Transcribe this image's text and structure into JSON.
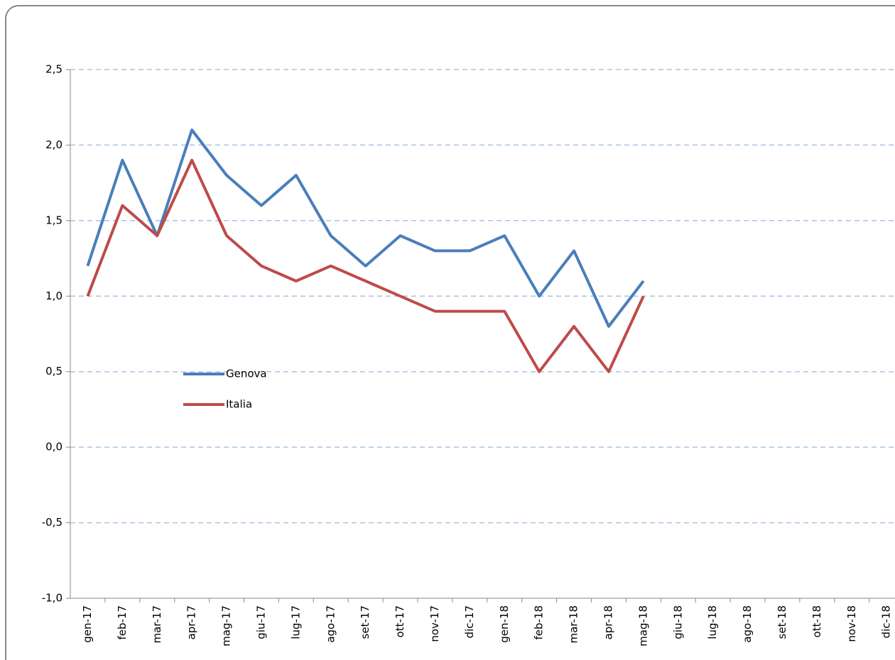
{
  "chart_data": {
    "type": "line",
    "categories": [
      "gen-17",
      "feb-17",
      "mar-17",
      "apr-17",
      "mag-17",
      "giu-17",
      "lug-17",
      "ago-17",
      "set-17",
      "ott-17",
      "nov-17",
      "dic-17",
      "gen-18",
      "feb-18",
      "mar-18",
      "apr-18",
      "mag-18",
      "giu-18",
      "lug-18",
      "ago-18",
      "set-18",
      "ott-18",
      "nov-18",
      "dic-18"
    ],
    "series": [
      {
        "name": "Genova",
        "color": "#4a7ebb",
        "values": [
          1.2,
          1.9,
          1.4,
          2.1,
          1.8,
          1.6,
          1.8,
          1.4,
          1.2,
          1.4,
          1.3,
          1.3,
          1.4,
          1.0,
          1.3,
          0.8,
          1.1,
          null,
          null,
          null,
          null,
          null,
          null,
          null
        ]
      },
      {
        "name": "Italia",
        "color": "#be4b48",
        "values": [
          1.0,
          1.6,
          1.4,
          1.9,
          1.4,
          1.2,
          1.1,
          1.2,
          1.1,
          1.0,
          0.9,
          0.9,
          0.9,
          0.5,
          0.8,
          0.5,
          1.0,
          null,
          null,
          null,
          null,
          null,
          null,
          null
        ]
      }
    ],
    "ylim": [
      -1,
      2.5
    ],
    "yticks": [
      {
        "value": -1,
        "label": "-1,0"
      },
      {
        "value": -0.5,
        "label": "-0,5"
      },
      {
        "value": 0,
        "label": "0,0"
      },
      {
        "value": 0.5,
        "label": "0,5"
      },
      {
        "value": 1,
        "label": "1,0"
      },
      {
        "value": 1.5,
        "label": "1,5"
      },
      {
        "value": 2,
        "label": "2,0"
      },
      {
        "value": 2.5,
        "label": "2,5"
      }
    ],
    "grid": true
  }
}
